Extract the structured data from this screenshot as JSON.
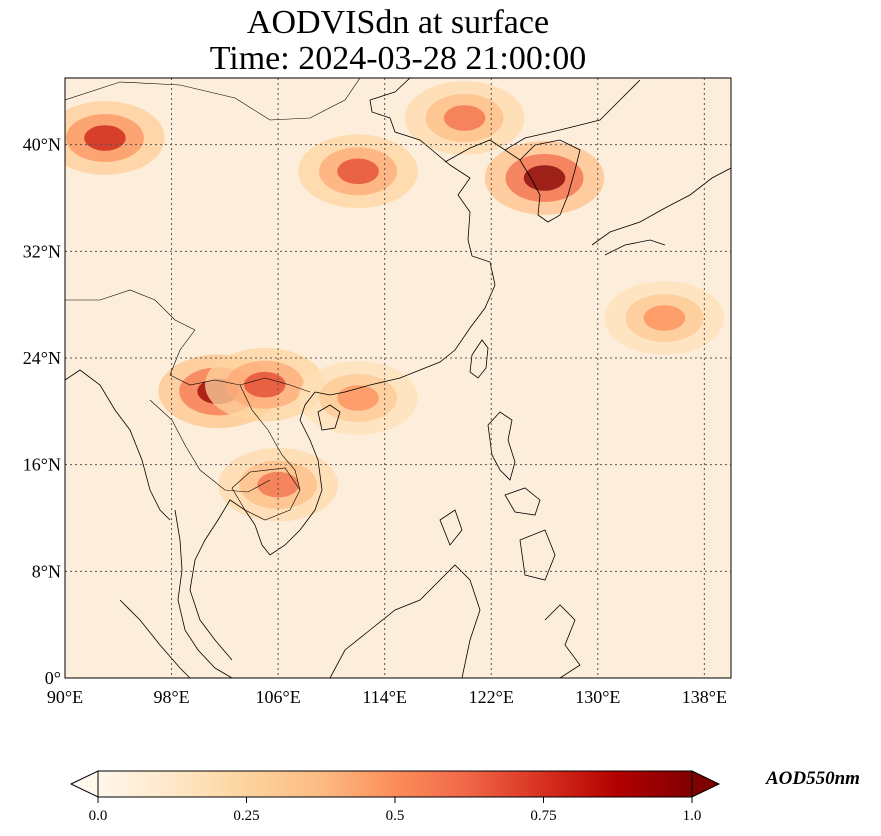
{
  "title": {
    "line1": "AODVISdn at surface",
    "line2": "Time: 2024-03-28 21:00:00"
  },
  "map": {
    "projection": "plate-carree",
    "lon_range": [
      90,
      140
    ],
    "lat_range": [
      0,
      45
    ],
    "gridlines": "dotted",
    "lon_ticks": [
      {
        "value": 90,
        "label": "90°E"
      },
      {
        "value": 98,
        "label": "98°E"
      },
      {
        "value": 106,
        "label": "106°E"
      },
      {
        "value": 114,
        "label": "114°E"
      },
      {
        "value": 122,
        "label": "122°E"
      },
      {
        "value": 130,
        "label": "130°E"
      },
      {
        "value": 138,
        "label": "138°E"
      }
    ],
    "lat_ticks": [
      {
        "value": 0,
        "label": "0°"
      },
      {
        "value": 8,
        "label": "8°N"
      },
      {
        "value": 16,
        "label": "16°N"
      },
      {
        "value": 24,
        "label": "24°N"
      },
      {
        "value": 32,
        "label": "32°N"
      },
      {
        "value": 40,
        "label": "40°N"
      }
    ],
    "field_hotspots": [
      {
        "name": "north-korea-korea",
        "lon": 126,
        "lat": 37.5,
        "value": 1.0
      },
      {
        "name": "laos-myanmar",
        "lon": 101.5,
        "lat": 21.5,
        "value": 0.95
      },
      {
        "name": "north-vietnam",
        "lon": 105,
        "lat": 22,
        "value": 0.7
      },
      {
        "name": "cambodia",
        "lon": 106,
        "lat": 14.5,
        "value": 0.6
      },
      {
        "name": "northwest-band",
        "lon": 93,
        "lat": 40.5,
        "value": 0.8
      },
      {
        "name": "inner-mongolia-band",
        "lon": 112,
        "lat": 38,
        "value": 0.7
      },
      {
        "name": "north-plume",
        "lon": 120,
        "lat": 42,
        "value": 0.6
      },
      {
        "name": "japan-east",
        "lon": 135,
        "lat": 27,
        "value": 0.5
      },
      {
        "name": "south-china-coast",
        "lon": 112,
        "lat": 21,
        "value": 0.5
      }
    ]
  },
  "colorbar": {
    "colormap": "OrRd",
    "colors": [
      "#fff7ec",
      "#fee8c8",
      "#fdd49e",
      "#fdbb84",
      "#fc8d59",
      "#ef6548",
      "#d7301f",
      "#b30000",
      "#7f0000"
    ],
    "range": [
      0.0,
      1.0
    ],
    "extend": "both",
    "ticks": [
      "0.0",
      "0.25",
      "0.5",
      "0.75",
      "1.0"
    ],
    "label": "AOD550nm"
  }
}
